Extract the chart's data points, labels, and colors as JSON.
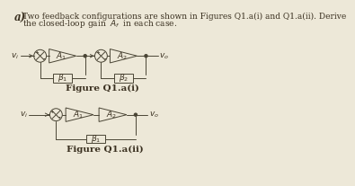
{
  "bg_color": "#ede8d8",
  "line_color": "#4a4535",
  "text_color": "#3a3020",
  "header_line1": "Two feedback configurations are shown in Figures Q1.a(i) and Q1.a(ii). Derive",
  "header_line2": "the closed-loop gain  $A_f$  in each case.",
  "fig1_label": "Figure Q1.a(i)",
  "fig2_label": "Figure Q1.a(ii)",
  "fontsize_body": 6.5,
  "fontsize_label": 7.0,
  "fontsize_bold_label": 7.5,
  "fontsize_a": 8.5,
  "lw": 0.7
}
